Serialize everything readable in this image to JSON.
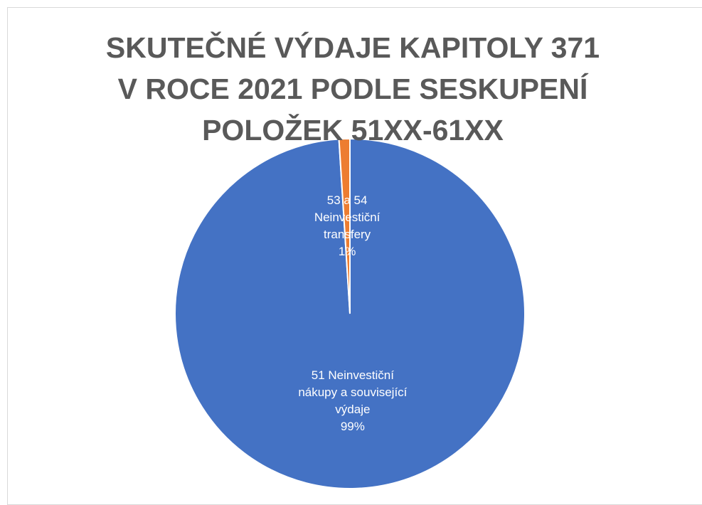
{
  "chart_data": {
    "type": "pie",
    "title": "SKUTEČNÉ VÝDAJE KAPITOLY 371 V ROCE 2021 PODLE SESKUPENÍ POLOŽEK 51XX-61XX",
    "categories": [
      "51 Neinvestiční nákupy a související výdaje",
      "53 a 54 Neinvestiční transfery"
    ],
    "values": [
      99,
      1
    ],
    "value_labels": [
      "99%",
      "1%"
    ],
    "colors": [
      "#4472c4",
      "#ed7d31"
    ]
  }
}
